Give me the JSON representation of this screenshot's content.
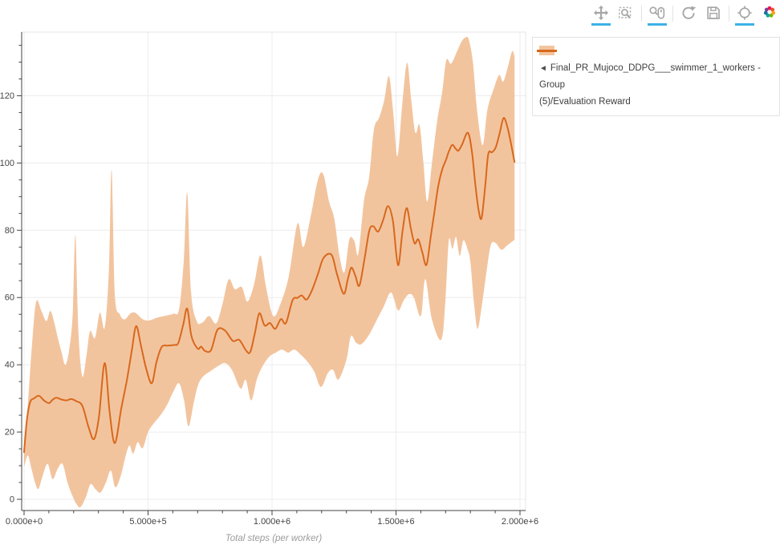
{
  "toolbar": {
    "tools": [
      {
        "id": "pan",
        "name": "pan-tool",
        "active": true
      },
      {
        "id": "box-zoom",
        "name": "box-zoom-tool",
        "active": false
      },
      {
        "id": "wheel-zoom",
        "name": "wheel-zoom-tool",
        "active": true
      },
      {
        "id": "reset",
        "name": "reset-tool",
        "active": false
      },
      {
        "id": "save",
        "name": "save-tool",
        "active": false
      },
      {
        "id": "hover",
        "name": "hover-tool",
        "active": true
      }
    ],
    "logo": "bokeh-logo",
    "active_underline_color": "#3cb1e6",
    "icon_color": "#a6a6a6",
    "logo_colors": [
      "#ec1557",
      "#f05223",
      "#f8a41b",
      "#7eb606",
      "#13a89e",
      "#1572a1",
      "#7f3f98"
    ]
  },
  "legend": {
    "marker": "◄",
    "label_line1": "Final_PR_Mujoco_DDPG___swimmer_1_workers - Group",
    "label_line2": "(5)/Evaluation Reward"
  },
  "colors": {
    "line": "#d8681c",
    "band": "#f2c49e",
    "grid": "#ececec",
    "axis": "#444444",
    "frame_border": "#e5e5e5",
    "tick_label": "#444444",
    "axis_label": "#9b9b9b"
  },
  "chart_data": {
    "type": "line",
    "title": "",
    "xlabel": "Total steps (per worker)",
    "ylabel": "",
    "legend_position": "top-right-outside",
    "grid": true,
    "x_range": [
      -9700,
      2022700
    ],
    "y_range": [
      -3.34,
      138.94
    ],
    "x_ticks": [
      {
        "value": 0,
        "label": "0.000e+0"
      },
      {
        "value": 500000,
        "label": "5.000e+5"
      },
      {
        "value": 1000000,
        "label": "1.000e+6"
      },
      {
        "value": 1500000,
        "label": "1.500e+6"
      },
      {
        "value": 2000000,
        "label": "2.000e+6"
      }
    ],
    "x_minor_step": 100000,
    "y_ticks": [
      {
        "value": 0,
        "label": "0"
      },
      {
        "value": 20,
        "label": "20"
      },
      {
        "value": 40,
        "label": "40"
      },
      {
        "value": 60,
        "label": "60"
      },
      {
        "value": 80,
        "label": "80"
      },
      {
        "value": 100,
        "label": "100"
      },
      {
        "value": 120,
        "label": "120"
      }
    ],
    "y_minor_step": 5,
    "series": [
      {
        "name": "◄ Final_PR_Mujoco_DDPG___swimmer_1_workers - Group (5)/Evaluation Reward",
        "line_color": "#d8681c",
        "band_color": "#f2c49e",
        "line": {
          "x": [
            0,
            12000,
            25000,
            40000,
            60000,
            80000,
            100000,
            115000,
            130000,
            150000,
            170000,
            190000,
            210000,
            235000,
            260000,
            282000,
            302000,
            325000,
            345000,
            366000,
            392000,
            415000,
            435000,
            452000,
            472000,
            492000,
            515000,
            534000,
            555000,
            580000,
            605000,
            622000,
            642000,
            658000,
            675000,
            700000,
            714000,
            730000,
            754000,
            780000,
            810000,
            842000,
            868000,
            895000,
            912000,
            931000,
            949000,
            970000,
            992000,
            1013000,
            1036000,
            1056000,
            1083000,
            1103000,
            1120000,
            1140000,
            1163000,
            1185000,
            1208000,
            1240000,
            1262000,
            1289000,
            1306000,
            1320000,
            1336000,
            1352000,
            1372000,
            1392000,
            1408000,
            1428000,
            1448000,
            1468000,
            1488000,
            1508000,
            1526000,
            1543000,
            1560000,
            1575000,
            1590000,
            1606000,
            1623000,
            1640000,
            1656000,
            1670000,
            1686000,
            1702000,
            1714000,
            1727000,
            1740000,
            1752000,
            1767000,
            1790000,
            1806000,
            1820000,
            1833000,
            1845000,
            1859000,
            1872000,
            1887000,
            1902000,
            1918000,
            1934000,
            1950000,
            1963000,
            1978000
          ],
          "y": [
            14,
            24,
            29,
            30,
            30.8,
            29.4,
            28.6,
            29.6,
            30.2,
            29.7,
            29.4,
            29.8,
            29.2,
            27.8,
            21.5,
            17.9,
            24.5,
            40.5,
            26,
            16.7,
            27,
            35.5,
            44.5,
            51.5,
            45.5,
            39,
            34.5,
            40.8,
            45.3,
            45.7,
            45.9,
            46.5,
            52,
            56.7,
            48.5,
            44.8,
            45.4,
            44.1,
            44.4,
            50.4,
            50.2,
            47.1,
            47.4,
            44.3,
            43.8,
            49.5,
            55.3,
            51.7,
            52.4,
            50.7,
            53.6,
            52.4,
            59.2,
            59.9,
            60.6,
            59.4,
            62.5,
            67,
            71.8,
            72.7,
            67,
            61.1,
            65.5,
            68.9,
            66.5,
            63.5,
            71,
            79.8,
            81.2,
            79.6,
            83,
            87.2,
            82.5,
            69.6,
            79.5,
            86.6,
            80.5,
            76.1,
            77.3,
            73.5,
            69.7,
            78,
            86,
            93,
            98,
            101,
            103.6,
            105.4,
            104.3,
            103.7,
            105.6,
            109,
            103.5,
            93.5,
            86,
            83.6,
            92.5,
            102.6,
            103.2,
            104.6,
            108.8,
            113.4,
            110.5,
            106,
            100.3
          ]
        },
        "band_upper": {
          "x": [
            0,
            15000,
            32000,
            49000,
            70000,
            90000,
            106000,
            122000,
            136000,
            152000,
            166000,
            181000,
            196000,
            207000,
            219000,
            235000,
            252000,
            266000,
            286000,
            306000,
            325000,
            342000,
            353000,
            366000,
            386000,
            406000,
            428000,
            448000,
            480000,
            506000,
            536000,
            566000,
            602000,
            625000,
            644000,
            658000,
            673000,
            696000,
            720000,
            746000,
            775000,
            800000,
            825000,
            850000,
            878000,
            901000,
            928000,
            953000,
            976000,
            1005000,
            1036000,
            1068000,
            1103000,
            1126000,
            1156000,
            1186000,
            1207000,
            1230000,
            1251000,
            1272000,
            1292000,
            1312000,
            1332000,
            1348000,
            1371000,
            1392000,
            1411000,
            1432000,
            1452000,
            1472000,
            1490000,
            1506000,
            1526000,
            1545000,
            1562000,
            1578000,
            1595000,
            1610000,
            1626000,
            1645000,
            1666000,
            1686000,
            1703000,
            1722000,
            1745000,
            1765000,
            1780000,
            1793000,
            1810000,
            1828000,
            1850000,
            1869000,
            1894000,
            1916000,
            1932000,
            1950000,
            1968000,
            1978000
          ],
          "y": [
            16,
            28,
            46,
            58.8,
            56,
            53,
            56,
            52.5,
            48,
            43.5,
            40,
            44,
            55,
            78.6,
            50,
            36.5,
            43,
            50,
            48,
            55.5,
            51,
            68,
            97.9,
            61,
            55,
            53.5,
            55.2,
            55.5,
            53.5,
            53.2,
            54,
            54.5,
            55.2,
            56.5,
            71,
            91.2,
            62,
            53,
            52.6,
            54.5,
            52.3,
            58,
            65.4,
            62.5,
            63.1,
            58.8,
            64,
            72.5,
            63,
            54.5,
            58.5,
            66.5,
            82,
            75,
            84.2,
            95.3,
            96.6,
            88.5,
            83.5,
            72.5,
            67.5,
            77.3,
            76.8,
            73,
            88.8,
            96,
            110,
            113.5,
            118.5,
            125.8,
            114,
            102,
            118,
            129.8,
            118.5,
            109,
            111.3,
            100.5,
            88.5,
            100,
            112.5,
            121,
            130.6,
            129.5,
            133,
            136.2,
            137.3,
            136.8,
            130,
            115,
            105.3,
            116,
            122,
            126.2,
            124.2,
            128.2,
            133.2,
            131.8
          ]
        },
        "band_lower": {
          "x": [
            0,
            15000,
            30000,
            45000,
            58000,
            75000,
            95000,
            115000,
            135000,
            155000,
            175000,
            195000,
            212000,
            228000,
            250000,
            268000,
            288000,
            308000,
            330000,
            350000,
            368000,
            390000,
            410000,
            425000,
            440000,
            458000,
            478000,
            500000,
            522000,
            550000,
            576000,
            602000,
            625000,
            645000,
            663000,
            685000,
            702000,
            722000,
            750000,
            780000,
            810000,
            838000,
            873000,
            894000,
            916000,
            940000,
            965000,
            990000,
            1015000,
            1040000,
            1065000,
            1090000,
            1116000,
            1142000,
            1170000,
            1197000,
            1225000,
            1246000,
            1268000,
            1300000,
            1318000,
            1340000,
            1362000,
            1392000,
            1420000,
            1450000,
            1480000,
            1508000,
            1530000,
            1552000,
            1572000,
            1600000,
            1618000,
            1645000,
            1683000,
            1700000,
            1713000,
            1728000,
            1742000,
            1757000,
            1772000,
            1790000,
            1800000,
            1815000,
            1829000,
            1846000,
            1862000,
            1882000,
            1902000,
            1925000,
            1950000,
            1978000
          ],
          "y": [
            9.5,
            13,
            9,
            4.8,
            3.1,
            7,
            10.5,
            6,
            9,
            10.5,
            5,
            1,
            -1.5,
            -2.3,
            0.8,
            4.5,
            3,
            2,
            5,
            8.5,
            3.6,
            7,
            13,
            16,
            13.6,
            17,
            15.2,
            20,
            22.5,
            25,
            28,
            32,
            34.5,
            29.5,
            21.7,
            29,
            34,
            36.5,
            38,
            39.5,
            40.5,
            38.5,
            32.9,
            35.5,
            29.4,
            36,
            40,
            42.5,
            43.6,
            44.5,
            43.6,
            44.5,
            43,
            41,
            38,
            33.4,
            37.5,
            38.5,
            35.6,
            41.5,
            48.5,
            46.5,
            46.2,
            49,
            53,
            57.2,
            61.5,
            56.2,
            59,
            61,
            60,
            54.5,
            65.5,
            53.5,
            47.5,
            60,
            77,
            74.5,
            78,
            72.4,
            77,
            74,
            70.5,
            58,
            50.7,
            57.5,
            66,
            75.5,
            76.2,
            74.2,
            75.6,
            77.2
          ]
        }
      }
    ]
  }
}
